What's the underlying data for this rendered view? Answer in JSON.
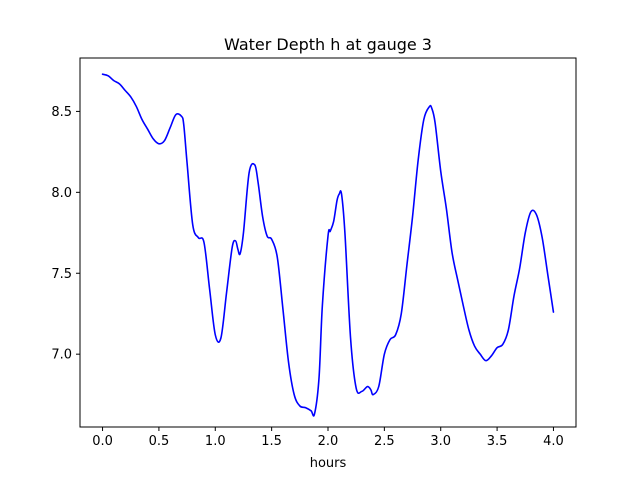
{
  "chart_data": {
    "type": "line",
    "title": "Water Depth h at gauge 3",
    "xlabel": "hours",
    "ylabel": "",
    "xlim": [
      -0.2,
      4.2
    ],
    "ylim": [
      6.55,
      8.83
    ],
    "xticks": [
      0.0,
      0.5,
      1.0,
      1.5,
      2.0,
      2.5,
      3.0,
      3.5,
      4.0
    ],
    "xtick_labels": [
      "0.0",
      "0.5",
      "1.0",
      "1.5",
      "2.0",
      "2.5",
      "3.0",
      "3.5",
      "4.0"
    ],
    "yticks": [
      7.0,
      7.5,
      8.0,
      8.5
    ],
    "ytick_labels": [
      "7.0",
      "7.5",
      "8.0",
      "8.5"
    ],
    "grid": false,
    "series": [
      {
        "color": "#0000ff",
        "x": [
          0.0,
          0.05,
          0.1,
          0.15,
          0.2,
          0.25,
          0.3,
          0.35,
          0.4,
          0.45,
          0.5,
          0.55,
          0.6,
          0.65,
          0.7,
          0.72,
          0.75,
          0.8,
          0.85,
          0.9,
          0.95,
          1.0,
          1.05,
          1.1,
          1.15,
          1.18,
          1.2,
          1.22,
          1.25,
          1.3,
          1.35,
          1.38,
          1.42,
          1.46,
          1.5,
          1.55,
          1.6,
          1.65,
          1.7,
          1.75,
          1.8,
          1.85,
          1.88,
          1.92,
          1.95,
          2.0,
          2.02,
          2.05,
          2.08,
          2.1,
          2.12,
          2.15,
          2.2,
          2.25,
          2.3,
          2.35,
          2.38,
          2.4,
          2.45,
          2.5,
          2.55,
          2.6,
          2.65,
          2.7,
          2.75,
          2.8,
          2.85,
          2.9,
          2.92,
          2.95,
          3.0,
          3.05,
          3.1,
          3.15,
          3.2,
          3.25,
          3.3,
          3.35,
          3.4,
          3.45,
          3.5,
          3.55,
          3.6,
          3.65,
          3.7,
          3.75,
          3.8,
          3.85,
          3.9,
          3.95,
          4.0
        ],
        "y": [
          8.73,
          8.72,
          8.69,
          8.67,
          8.63,
          8.59,
          8.53,
          8.45,
          8.39,
          8.33,
          8.3,
          8.32,
          8.4,
          8.48,
          8.47,
          8.42,
          8.18,
          7.8,
          7.72,
          7.69,
          7.4,
          7.12,
          7.1,
          7.38,
          7.66,
          7.7,
          7.65,
          7.62,
          7.75,
          8.12,
          8.17,
          8.06,
          7.85,
          7.73,
          7.71,
          7.6,
          7.28,
          6.95,
          6.75,
          6.68,
          6.67,
          6.65,
          6.63,
          6.85,
          7.3,
          7.73,
          7.76,
          7.82,
          7.95,
          7.99,
          7.99,
          7.75,
          7.1,
          6.79,
          6.77,
          6.8,
          6.78,
          6.75,
          6.8,
          7.0,
          7.09,
          7.12,
          7.25,
          7.55,
          7.85,
          8.2,
          8.45,
          8.53,
          8.52,
          8.43,
          8.13,
          7.9,
          7.63,
          7.46,
          7.3,
          7.15,
          7.05,
          7.0,
          6.96,
          6.99,
          7.04,
          7.06,
          7.15,
          7.36,
          7.53,
          7.75,
          7.88,
          7.86,
          7.72,
          7.49,
          7.26
        ]
      }
    ]
  }
}
